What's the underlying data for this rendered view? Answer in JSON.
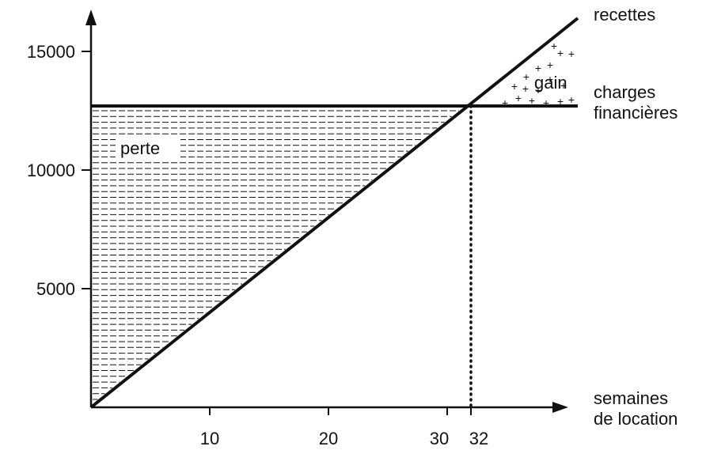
{
  "chart_data": {
    "type": "line",
    "title": "",
    "xlabel": [
      "semaines",
      "de location"
    ],
    "ylabel": "",
    "xlim": [
      0,
      40
    ],
    "ylim": [
      0,
      16500
    ],
    "x_ticks": [
      {
        "value": 10,
        "label": "10"
      },
      {
        "value": 20,
        "label": "20"
      },
      {
        "value": 30,
        "label": "30"
      },
      {
        "value": 32,
        "label": "32"
      }
    ],
    "y_ticks": [
      {
        "value": 5000,
        "label": "5000"
      },
      {
        "value": 10000,
        "label": "10000"
      },
      {
        "value": 15000,
        "label": "15000"
      }
    ],
    "series": [
      {
        "name": "recettes",
        "name_lines": [
          "recettes"
        ],
        "x": [
          0,
          41
        ],
        "y": [
          0,
          16400
        ]
      },
      {
        "name": "charges financières",
        "name_lines": [
          "charges",
          "financières"
        ],
        "x": [
          0,
          41
        ],
        "y": [
          12700,
          12700
        ]
      }
    ],
    "break_even": {
      "x": 32,
      "y": 12700
    },
    "regions": {
      "loss_label": "perte",
      "gain_label": "gain"
    },
    "grid": false,
    "colors": {
      "ink": "#111111",
      "background": "#ffffff"
    }
  }
}
